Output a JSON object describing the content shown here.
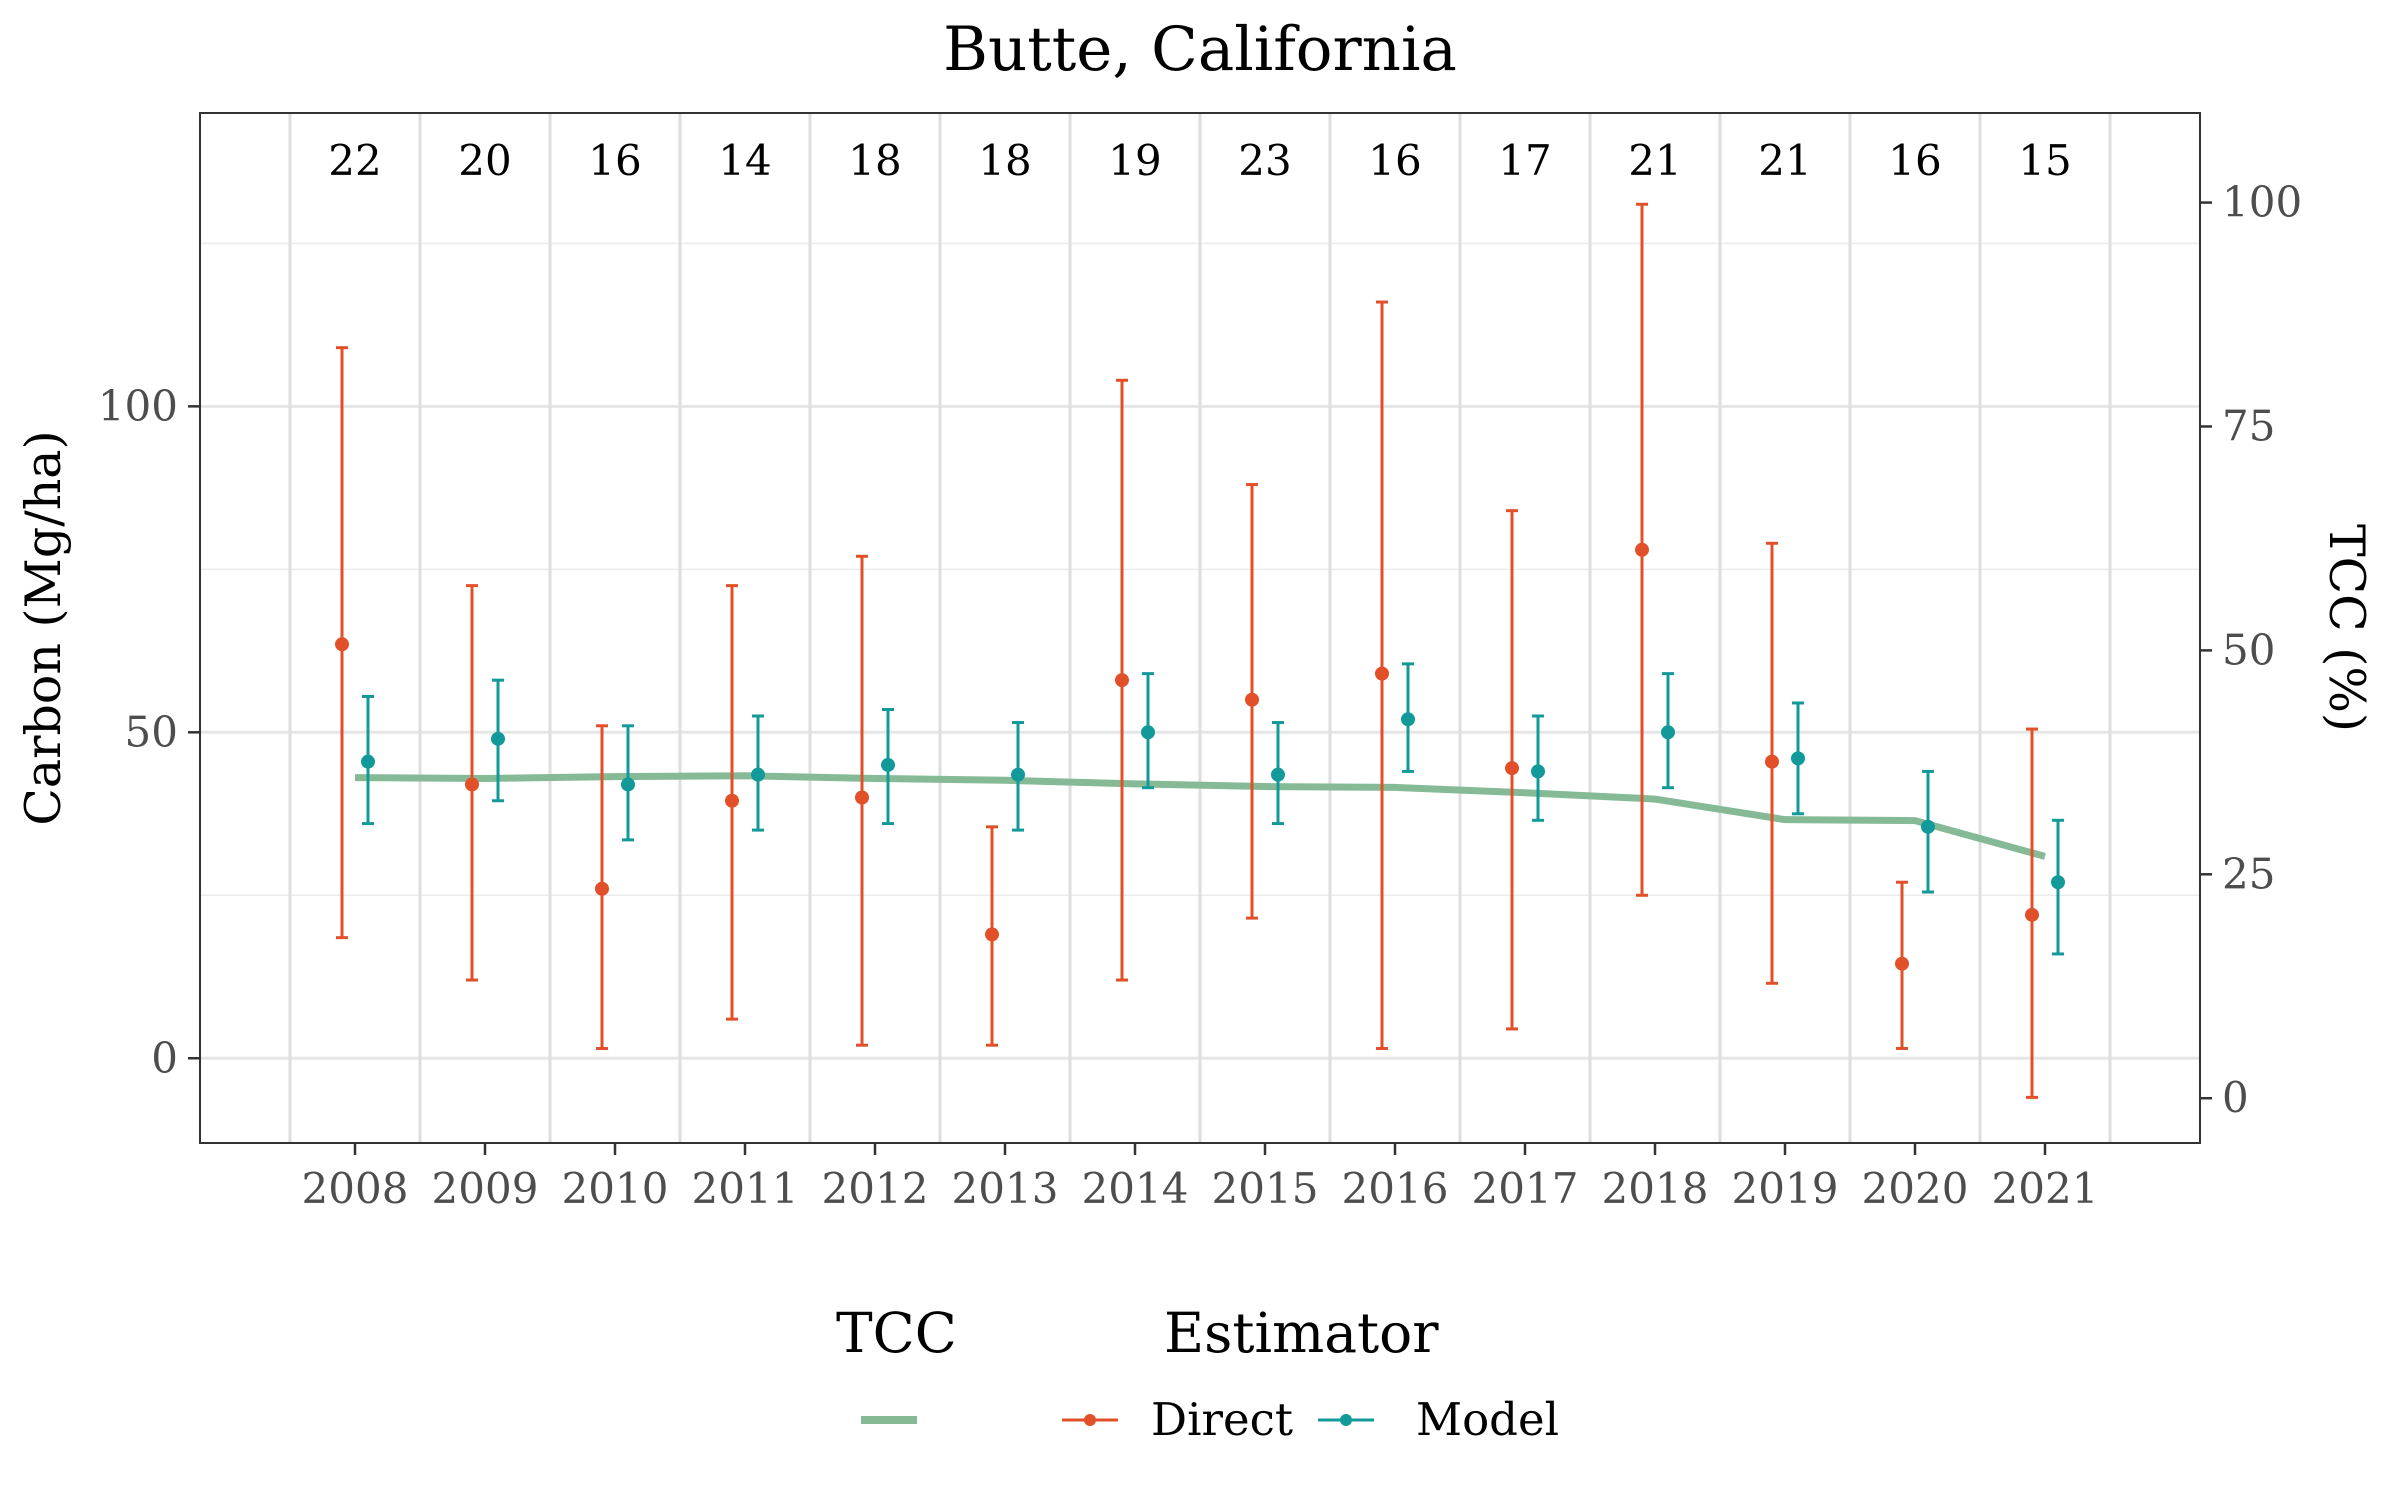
{
  "chart_data": {
    "type": "line",
    "title": "Butte, California",
    "ylabel": "Carbon (Mg/ha)",
    "y2label": "TCC (%)",
    "x": [
      2008,
      2009,
      2010,
      2011,
      2012,
      2013,
      2014,
      2015,
      2016,
      2017,
      2018,
      2019,
      2020,
      2021
    ],
    "ylim": [
      -13,
      145
    ],
    "y_ticks": [
      0,
      50,
      100
    ],
    "y2lim": [
      -5,
      110
    ],
    "y2_ticks": [
      0,
      25,
      50,
      75,
      100
    ],
    "counts": [
      22,
      20,
      16,
      14,
      18,
      18,
      19,
      23,
      16,
      17,
      21,
      21,
      16,
      15
    ],
    "series": [
      {
        "name": "Direct",
        "color": "#e2502a",
        "values": [
          63.5,
          42,
          26,
          39.5,
          40,
          19,
          58,
          55,
          59,
          44.5,
          78,
          45.5,
          14.5,
          22
        ],
        "lower": [
          18.5,
          12,
          1.5,
          6,
          2,
          2,
          12,
          21.5,
          1.5,
          4.5,
          25,
          11.5,
          1.5,
          -6
        ],
        "upper": [
          109,
          72.5,
          51,
          72.5,
          77,
          35.5,
          104,
          88,
          116,
          84,
          131,
          79,
          27,
          50.5
        ]
      },
      {
        "name": "Model",
        "color": "#12999a",
        "values": [
          45.5,
          49,
          42,
          43.5,
          45,
          43.5,
          50,
          43.5,
          52,
          44,
          50,
          46,
          35.5,
          27
        ],
        "lower": [
          36,
          39.5,
          33.5,
          35,
          36,
          35,
          41.5,
          36,
          44,
          36.5,
          41.5,
          37.5,
          25.5,
          16
        ],
        "upper": [
          55.5,
          58,
          51,
          52.5,
          53.5,
          51.5,
          59,
          51.5,
          60.5,
          52.5,
          59,
          54.5,
          44,
          36.5
        ]
      }
    ],
    "tcc": {
      "name": "TCC",
      "color": "#86ba96",
      "values": [
        35.8,
        35.7,
        35.9,
        36,
        35.7,
        35.5,
        35.1,
        34.8,
        34.7,
        34.1,
        33.4,
        31.1,
        31,
        27
      ]
    },
    "legend": {
      "position": "bottom",
      "tcc_title": "TCC",
      "estimator_title": "Estimator",
      "estimator_labels": [
        "Direct",
        "Model"
      ]
    },
    "grid": true
  }
}
